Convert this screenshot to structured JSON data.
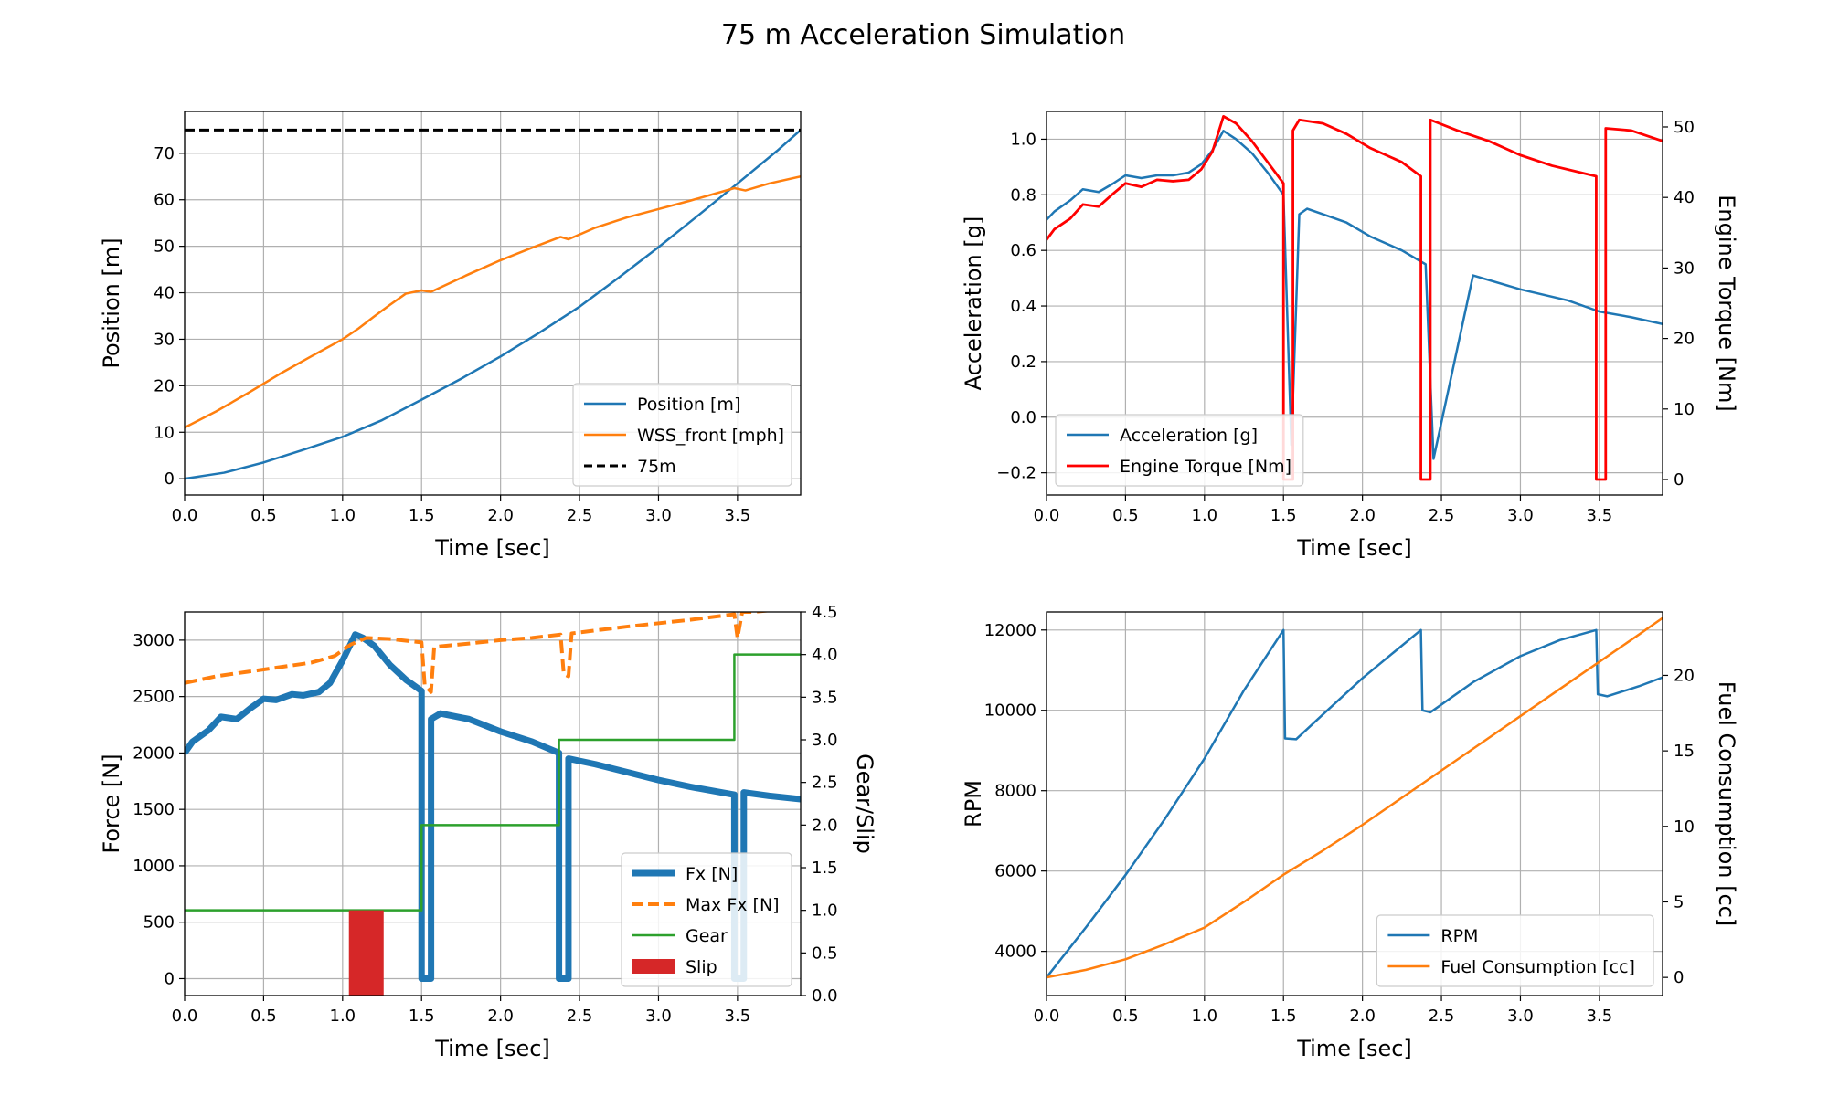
{
  "figure_title": "75 m Acceleration Simulation",
  "chart_data": [
    {
      "type": "line",
      "panel": "top-left",
      "xlabel": "Time [sec]",
      "ylabel": "Position [m]",
      "xlim": [
        0,
        3.9
      ],
      "ylim": [
        -3.5,
        79
      ],
      "xticks": [
        0,
        0.5,
        1.0,
        1.5,
        2.0,
        2.5,
        3.0,
        3.5
      ],
      "yticks": [
        0,
        10,
        20,
        30,
        40,
        50,
        60,
        70
      ],
      "grid": true,
      "legend": "lower-right",
      "series": [
        {
          "name": "Position [m]",
          "color": "#1f77b4",
          "style": "solid",
          "width": 2.5,
          "x": [
            0,
            0.25,
            0.5,
            0.75,
            1.0,
            1.25,
            1.5,
            1.75,
            2.0,
            2.25,
            2.5,
            2.75,
            3.0,
            3.25,
            3.5,
            3.75,
            3.9
          ],
          "y": [
            0,
            1.3,
            3.5,
            6.2,
            9.0,
            12.6,
            17.0,
            21.5,
            26.3,
            31.5,
            37.0,
            43.3,
            49.8,
            56.6,
            63.5,
            70.5,
            75.0
          ]
        },
        {
          "name": "WSS_front [mph]",
          "color": "#ff7f0e",
          "style": "solid",
          "width": 2.5,
          "x": [
            0,
            0.2,
            0.4,
            0.6,
            0.8,
            1.0,
            1.1,
            1.2,
            1.3,
            1.4,
            1.5,
            1.56,
            1.8,
            2.0,
            2.2,
            2.38,
            2.43,
            2.6,
            2.8,
            3.0,
            3.2,
            3.48,
            3.55,
            3.7,
            3.9
          ],
          "y": [
            11,
            14.5,
            18.4,
            22.5,
            26.3,
            30,
            32.3,
            34.9,
            37.4,
            39.8,
            40.5,
            40.2,
            44,
            47,
            49.7,
            52,
            51.5,
            54,
            56.2,
            58,
            59.8,
            62.5,
            62.0,
            63.5,
            65
          ]
        },
        {
          "name": "75m",
          "color": "#000000",
          "style": "dashed",
          "width": 3,
          "x": [
            0,
            3.9
          ],
          "y": [
            75,
            75
          ]
        }
      ]
    },
    {
      "type": "line",
      "panel": "top-right",
      "xlabel": "Time [sec]",
      "ylabel": "Acceleration [g]",
      "ylabel_right": "Engine Torque [Nm]",
      "xlim": [
        0,
        3.9
      ],
      "ylim": [
        -0.28,
        1.1
      ],
      "ylim_right": [
        -2.2,
        52.2
      ],
      "xticks": [
        0,
        0.5,
        1.0,
        1.5,
        2.0,
        2.5,
        3.0,
        3.5
      ],
      "yticks": [
        -0.2,
        0.0,
        0.2,
        0.4,
        0.6,
        0.8,
        1.0
      ],
      "yticks_right": [
        0,
        10,
        20,
        30,
        40,
        50
      ],
      "grid": true,
      "legend": "lower-left",
      "series": [
        {
          "name": "Acceleration [g]",
          "color": "#1f77b4",
          "axis": "left",
          "width": 2.5,
          "x": [
            0,
            0.05,
            0.15,
            0.23,
            0.33,
            0.42,
            0.5,
            0.6,
            0.7,
            0.8,
            0.9,
            0.98,
            1.05,
            1.12,
            1.2,
            1.3,
            1.4,
            1.5,
            1.55,
            1.6,
            1.65,
            1.75,
            1.9,
            2.05,
            2.25,
            2.4,
            2.45,
            2.7,
            3.0,
            3.3,
            3.5,
            3.7,
            3.9
          ],
          "y": [
            0.71,
            0.74,
            0.78,
            0.82,
            0.81,
            0.84,
            0.87,
            0.86,
            0.87,
            0.87,
            0.88,
            0.91,
            0.96,
            1.03,
            1.0,
            0.95,
            0.88,
            0.8,
            -0.1,
            0.73,
            0.75,
            0.73,
            0.7,
            0.65,
            0.6,
            0.55,
            -0.15,
            0.51,
            0.46,
            0.42,
            0.38,
            0.36,
            0.335
          ]
        },
        {
          "name": "Engine Torque [Nm]",
          "color": "#ff0000",
          "axis": "right",
          "width": 2.8,
          "x": [
            0,
            0.05,
            0.15,
            0.23,
            0.33,
            0.42,
            0.5,
            0.6,
            0.7,
            0.8,
            0.9,
            0.98,
            1.05,
            1.12,
            1.2,
            1.3,
            1.4,
            1.5,
            1.5,
            1.56,
            1.56,
            1.6,
            1.75,
            1.9,
            2.05,
            2.25,
            2.37,
            2.37,
            2.43,
            2.43,
            2.6,
            2.8,
            3.0,
            3.2,
            3.48,
            3.48,
            3.54,
            3.54,
            3.7,
            3.9
          ],
          "y": [
            34,
            35.5,
            37,
            39,
            38.7,
            40.5,
            42,
            41.5,
            42.5,
            42.3,
            42.5,
            44,
            46.5,
            51.5,
            50.5,
            48,
            45,
            42,
            0,
            0,
            49.5,
            51,
            50.5,
            49,
            47,
            45,
            43,
            0,
            0,
            51,
            49.5,
            48,
            46,
            44.5,
            43,
            0,
            0,
            49.8,
            49.5,
            48
          ]
        }
      ]
    },
    {
      "type": "line",
      "panel": "bottom-left",
      "xlabel": "Time [sec]",
      "ylabel": "Force [N]",
      "ylabel_right": "Gear/Slip",
      "xlim": [
        0,
        3.9
      ],
      "ylim": [
        -150,
        3250
      ],
      "ylim_right": [
        0,
        4.5
      ],
      "xticks": [
        0,
        0.5,
        1.0,
        1.5,
        2.0,
        2.5,
        3.0,
        3.5
      ],
      "yticks": [
        0,
        500,
        1000,
        1500,
        2000,
        2500,
        3000
      ],
      "yticks_right": [
        0.0,
        0.5,
        1.0,
        1.5,
        2.0,
        2.5,
        3.0,
        3.5,
        4.0,
        4.5
      ],
      "grid": true,
      "legend": "lower-right",
      "series": [
        {
          "name": "Fx [N]",
          "color": "#1f77b4",
          "axis": "left",
          "width": 7,
          "x": [
            0,
            0.05,
            0.15,
            0.23,
            0.33,
            0.42,
            0.5,
            0.58,
            0.68,
            0.75,
            0.85,
            0.92,
            1.0,
            1.08,
            1.13,
            1.2,
            1.3,
            1.4,
            1.5,
            1.5,
            1.56,
            1.56,
            1.62,
            1.8,
            2.0,
            2.2,
            2.37,
            2.37,
            2.43,
            2.43,
            2.6,
            2.8,
            3.0,
            3.2,
            3.48,
            3.48,
            3.54,
            3.54,
            3.7,
            3.9
          ],
          "y": [
            2000,
            2100,
            2200,
            2320,
            2300,
            2400,
            2480,
            2470,
            2520,
            2510,
            2540,
            2620,
            2820,
            3050,
            3020,
            2950,
            2780,
            2650,
            2550,
            0,
            0,
            2300,
            2350,
            2300,
            2190,
            2100,
            2000,
            0,
            0,
            1950,
            1900,
            1830,
            1760,
            1700,
            1630,
            0,
            0,
            1650,
            1620,
            1590
          ]
        },
        {
          "name": "Max Fx [N]",
          "color": "#ff7f0e",
          "axis": "left",
          "width": 4,
          "style": "dashed",
          "x": [
            0,
            0.2,
            0.4,
            0.6,
            0.8,
            0.95,
            1.05,
            1.15,
            1.3,
            1.5,
            1.52,
            1.56,
            1.58,
            1.8,
            2.0,
            2.2,
            2.38,
            2.4,
            2.43,
            2.45,
            2.8,
            3.2,
            3.48,
            3.5,
            3.53,
            3.6,
            3.9
          ],
          "y": [
            2620,
            2680,
            2720,
            2760,
            2800,
            2860,
            2960,
            3020,
            3010,
            2980,
            2600,
            2540,
            2940,
            2970,
            3000,
            3020,
            3050,
            2700,
            2680,
            3060,
            3120,
            3180,
            3230,
            3020,
            3250,
            3250,
            3290
          ]
        },
        {
          "name": "Gear",
          "color": "#2ca02c",
          "axis": "right",
          "width": 2.5,
          "x": [
            0,
            1.5,
            1.5,
            2.37,
            2.37,
            3.48,
            3.48,
            3.9
          ],
          "y": [
            1,
            1,
            2,
            2,
            3,
            3,
            4,
            4
          ]
        },
        {
          "name": "Slip",
          "color": "#d62728",
          "axis": "right",
          "type": "bar",
          "x_start": 1.04,
          "x_end": 1.26,
          "value": 1
        }
      ]
    },
    {
      "type": "line",
      "panel": "bottom-right",
      "xlabel": "Time [sec]",
      "ylabel": "RPM",
      "ylabel_right": "Fuel Consumption [cc]",
      "xlim": [
        0,
        3.9
      ],
      "ylim": [
        2900,
        12450
      ],
      "ylim_right": [
        -1.2,
        24.2
      ],
      "xticks": [
        0,
        0.5,
        1.0,
        1.5,
        2.0,
        2.5,
        3.0,
        3.5
      ],
      "yticks": [
        4000,
        6000,
        8000,
        10000,
        12000
      ],
      "yticks_right": [
        0,
        5,
        10,
        15,
        20
      ],
      "grid": true,
      "legend": "lower-right",
      "series": [
        {
          "name": "RPM",
          "color": "#1f77b4",
          "axis": "left",
          "width": 2.5,
          "x": [
            0,
            0.25,
            0.5,
            0.75,
            1.0,
            1.25,
            1.5,
            1.51,
            1.58,
            1.75,
            2.0,
            2.2,
            2.37,
            2.38,
            2.43,
            2.7,
            3.0,
            3.25,
            3.48,
            3.49,
            3.55,
            3.75,
            3.9
          ],
          "y": [
            3350,
            4600,
            5900,
            7300,
            8800,
            10500,
            12000,
            9300,
            9280,
            9900,
            10800,
            11450,
            12000,
            10000,
            9950,
            10700,
            11350,
            11750,
            12000,
            10400,
            10350,
            10600,
            10820
          ]
        },
        {
          "name": "Fuel Consumption [cc]",
          "color": "#ff7f0e",
          "axis": "right",
          "width": 2.5,
          "x": [
            0,
            0.25,
            0.5,
            0.75,
            1.0,
            1.25,
            1.5,
            1.75,
            2.0,
            2.25,
            2.5,
            2.75,
            3.0,
            3.25,
            3.5,
            3.75,
            3.9
          ],
          "y": [
            0,
            0.5,
            1.2,
            2.2,
            3.3,
            5.0,
            6.8,
            8.4,
            10.1,
            11.9,
            13.7,
            15.5,
            17.3,
            19.1,
            20.9,
            22.7,
            23.8
          ]
        }
      ]
    }
  ]
}
